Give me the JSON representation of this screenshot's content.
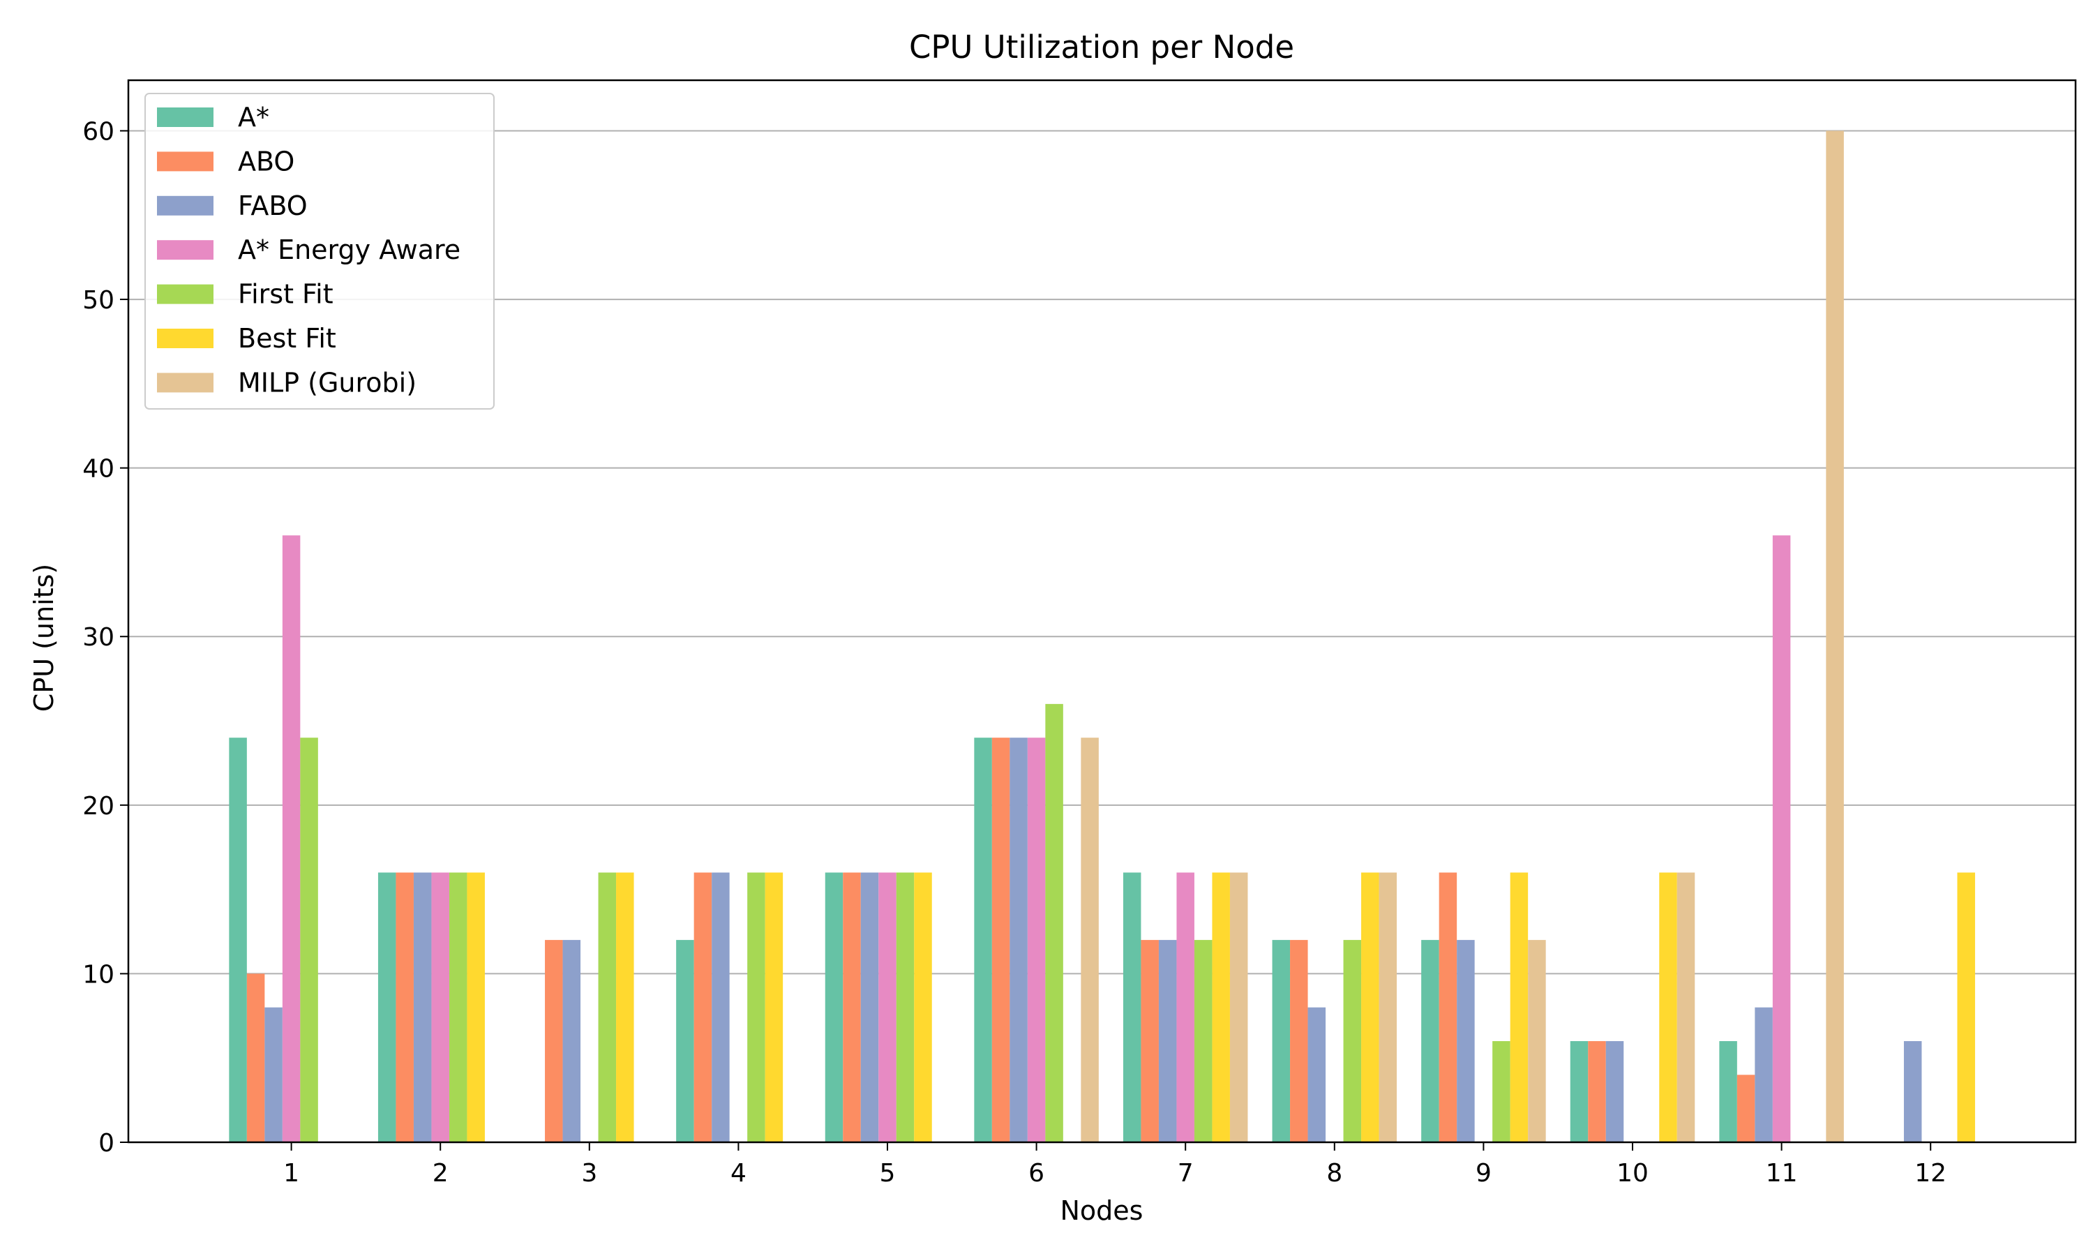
{
  "chart_data": {
    "type": "bar",
    "title": "CPU Utilization per Node",
    "xlabel": "Nodes",
    "ylabel": "CPU (units)",
    "ylim": [
      0,
      63
    ],
    "yticks": [
      0,
      10,
      20,
      30,
      40,
      50,
      60
    ],
    "grid": "y",
    "legend_position": "top-left",
    "categories": [
      "1",
      "2",
      "3",
      "4",
      "5",
      "6",
      "7",
      "8",
      "9",
      "10",
      "11",
      "12"
    ],
    "series": [
      {
        "name": "A*",
        "color": "#66c2a5",
        "values": [
          24,
          16,
          0,
          12,
          16,
          24,
          16,
          12,
          12,
          6,
          6,
          0
        ]
      },
      {
        "name": "ABO",
        "color": "#fc8d62",
        "values": [
          10,
          16,
          12,
          16,
          16,
          24,
          12,
          12,
          16,
          6,
          4,
          0
        ]
      },
      {
        "name": "FABO",
        "color": "#8da0cb",
        "values": [
          8,
          16,
          12,
          16,
          16,
          24,
          12,
          8,
          12,
          6,
          8,
          6
        ]
      },
      {
        "name": "A* Energy Aware",
        "color": "#e78ac3",
        "values": [
          36,
          16,
          0,
          0,
          16,
          24,
          16,
          0,
          0,
          0,
          36,
          0
        ]
      },
      {
        "name": "First Fit",
        "color": "#a6d854",
        "values": [
          24,
          16,
          16,
          16,
          16,
          26,
          12,
          12,
          6,
          0,
          0,
          0
        ]
      },
      {
        "name": "Best Fit",
        "color": "#ffd92f",
        "values": [
          0,
          16,
          16,
          16,
          16,
          0,
          16,
          16,
          16,
          16,
          0,
          16
        ]
      },
      {
        "name": "MILP (Gurobi)",
        "color": "#e5c494",
        "values": [
          0,
          0,
          0,
          0,
          0,
          24,
          16,
          16,
          12,
          16,
          60,
          0
        ]
      }
    ]
  }
}
